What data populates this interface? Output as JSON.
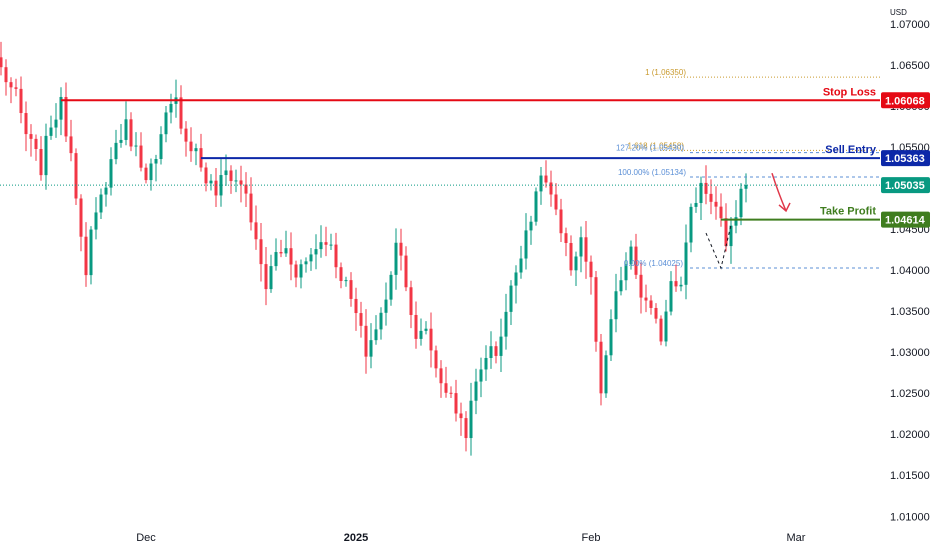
{
  "currency": "USD",
  "colors": {
    "up": "#089981",
    "down": "#f23645",
    "stop_loss": "#e50914",
    "sell_entry": "#0c28a8",
    "take_profit": "#3f7d1f",
    "current": "#089981",
    "fib_gold": "#c99a2e",
    "fib_blue": "#5b8fd6",
    "arrow": "#e0384a"
  },
  "chart_data": {
    "type": "candlestick",
    "symbol": "",
    "y_ticks": [
      "1.07000",
      "1.06500",
      "1.06000",
      "1.05500",
      "1.05000",
      "1.04500",
      "1.04000",
      "1.03500",
      "1.03000",
      "1.02500",
      "1.02000",
      "1.01500",
      "1.01000"
    ],
    "ylim": [
      1.0093,
      1.0729
    ],
    "x_ticks": [
      {
        "label": "Dec",
        "bold": false,
        "index": 29
      },
      {
        "label": "2025",
        "bold": true,
        "index": 71
      },
      {
        "label": "Feb",
        "bold": false,
        "index": 118
      },
      {
        "label": "Mar",
        "bold": false,
        "index": 159
      }
    ],
    "candles_count": 150,
    "anchors": [
      [
        0,
        1.0645
      ],
      [
        3,
        1.061
      ],
      [
        5,
        1.0565
      ],
      [
        8,
        1.0525
      ],
      [
        10,
        1.058
      ],
      [
        12,
        1.06
      ],
      [
        14,
        1.0545
      ],
      [
        16,
        1.045
      ],
      [
        17,
        1.039
      ],
      [
        18,
        1.044
      ],
      [
        21,
        1.051
      ],
      [
        23,
        1.0555
      ],
      [
        25,
        1.0575
      ],
      [
        27,
        1.0545
      ],
      [
        29,
        1.052
      ],
      [
        31,
        1.053
      ],
      [
        33,
        1.0585
      ],
      [
        35,
        1.0605
      ],
      [
        37,
        1.056
      ],
      [
        39,
        1.0545
      ],
      [
        41,
        1.051
      ],
      [
        43,
        1.0495
      ],
      [
        45,
        1.052
      ],
      [
        47,
        1.051
      ],
      [
        49,
        1.0495
      ],
      [
        51,
        1.043
      ],
      [
        53,
        1.038
      ],
      [
        55,
        1.042
      ],
      [
        57,
        1.0425
      ],
      [
        59,
        1.04
      ],
      [
        61,
        1.041
      ],
      [
        63,
        1.043
      ],
      [
        65,
        1.044
      ],
      [
        67,
        1.041
      ],
      [
        69,
        1.038
      ],
      [
        71,
        1.0345
      ],
      [
        73,
        1.03
      ],
      [
        75,
        1.033
      ],
      [
        77,
        1.036
      ],
      [
        79,
        1.044
      ],
      [
        81,
        1.039
      ],
      [
        83,
        1.031
      ],
      [
        85,
        1.033
      ],
      [
        87,
        1.028
      ],
      [
        89,
        1.0255
      ],
      [
        91,
        1.023
      ],
      [
        93,
        1.0205
      ],
      [
        95,
        1.026
      ],
      [
        97,
        1.03
      ],
      [
        99,
        1.03
      ],
      [
        101,
        1.035
      ],
      [
        103,
        1.04
      ],
      [
        105,
        1.045
      ],
      [
        107,
        1.0485
      ],
      [
        108,
        1.052
      ],
      [
        110,
        1.049
      ],
      [
        112,
        1.044
      ],
      [
        114,
        1.0405
      ],
      [
        116,
        1.044
      ],
      [
        118,
        1.0385
      ],
      [
        120,
        1.024
      ],
      [
        122,
        1.034
      ],
      [
        124,
        1.039
      ],
      [
        126,
        1.042
      ],
      [
        128,
        1.037
      ],
      [
        130,
        1.0345
      ],
      [
        132,
        1.032
      ],
      [
        134,
        1.039
      ],
      [
        136,
        1.039
      ],
      [
        138,
        1.047
      ],
      [
        140,
        1.0505
      ],
      [
        142,
        1.049
      ],
      [
        144,
        1.046
      ],
      [
        145,
        1.042
      ],
      [
        146,
        1.0445
      ],
      [
        148,
        1.0495
      ],
      [
        149,
        1.0504
      ]
    ],
    "last_price": 1.05035,
    "levels": [
      {
        "name": "Stop Loss",
        "label": "Stop Loss",
        "badge": "1.06068",
        "value": 1.06068,
        "color_key": "stop_loss",
        "from_index": 12
      },
      {
        "name": "Sell Entry",
        "label": "Sell Entry",
        "badge": "1.05363",
        "value": 1.05363,
        "color_key": "sell_entry",
        "from_index": 40
      },
      {
        "name": "Take Profit",
        "label": "Take Profit",
        "badge": "1.04614",
        "value": 1.04614,
        "color_key": "take_profit",
        "from_index": 144
      }
    ],
    "current_price_badge": "1.05035",
    "fibonacci": [
      {
        "label": "1 (1.06350)",
        "value": 1.0635,
        "color_key": "fib_gold"
      },
      {
        "label": "1.618 (1.05458)",
        "value": 1.05458,
        "color_key": "fib_gold"
      },
      {
        "label": "127.20% (1.05430)",
        "value": 1.0543,
        "color_key": "fib_blue"
      },
      {
        "label": "100.00% (1.05134)",
        "value": 1.05134,
        "color_key": "fib_blue"
      },
      {
        "label": "0.00% (1.04025)",
        "value": 1.04025,
        "color_key": "fib_blue"
      }
    ],
    "arrow": {
      "direction": "down"
    },
    "grid": false
  }
}
